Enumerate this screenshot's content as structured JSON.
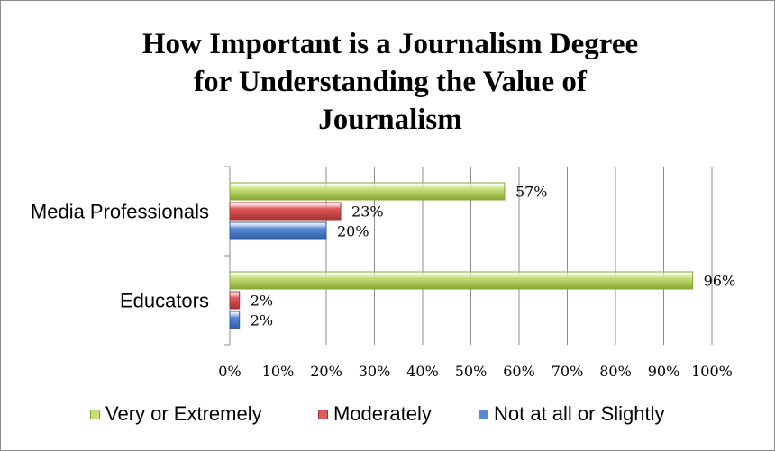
{
  "chart_data": {
    "type": "bar",
    "orientation": "horizontal",
    "title": [
      "How Important is a Journalism Degree",
      "for Understanding the Value of",
      "Journalism"
    ],
    "categories": [
      "Media Professionals",
      "Educators"
    ],
    "series": [
      {
        "name": "Very or Extremely",
        "values": [
          57,
          96
        ],
        "labels": [
          "57%",
          "96%"
        ],
        "color": "#c7e07a",
        "dark": "#86a832"
      },
      {
        "name": "Moderately",
        "values": [
          23,
          2
        ],
        "labels": [
          "23%",
          "2%"
        ],
        "color": "#e0595a",
        "dark": "#a63336"
      },
      {
        "name": "Not at all or Slightly",
        "values": [
          20,
          2
        ],
        "labels": [
          "20%",
          "2%"
        ],
        "color": "#5a8ad6",
        "dark": "#2f5ea6"
      }
    ],
    "xlim": [
      0,
      100
    ],
    "xticks": [
      "0%",
      "10%",
      "20%",
      "30%",
      "40%",
      "50%",
      "60%",
      "70%",
      "80%",
      "90%",
      "100%"
    ],
    "grid": true,
    "legend_position": "bottom"
  }
}
